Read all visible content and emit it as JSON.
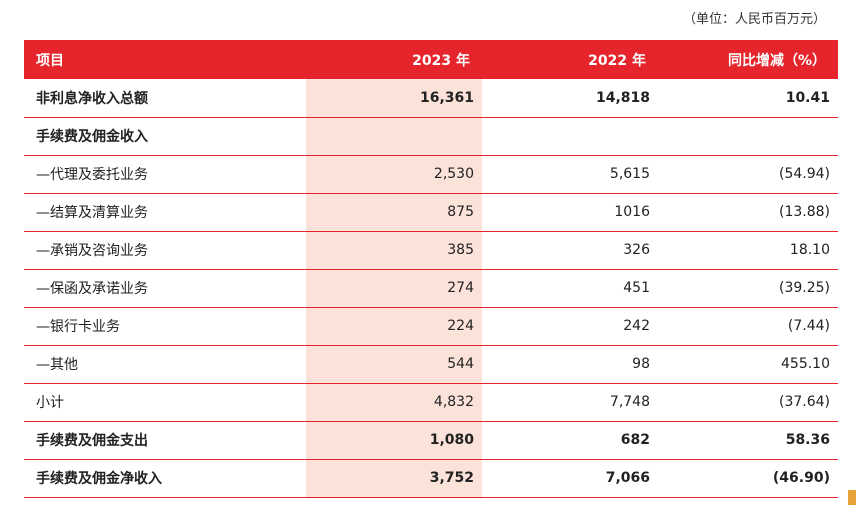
{
  "unit_note": "（单位：人民币百万元）",
  "header": {
    "item": "项目",
    "y2023": "2023 年",
    "y2022": "2022 年",
    "change": "同比增减（%）"
  },
  "rows": [
    {
      "label": "非利息净收入总额",
      "v2023": "16,361",
      "v2022": "14,818",
      "change": "10.41",
      "bold": true
    },
    {
      "label": "手续费及佣金收入",
      "v2023": "",
      "v2022": "",
      "change": "",
      "bold": true
    },
    {
      "label": "—代理及委托业务",
      "v2023": "2,530",
      "v2022": "5,615",
      "change": "(54.94)",
      "bold": false
    },
    {
      "label": "—结算及清算业务",
      "v2023": "875",
      "v2022": "1016",
      "change": "(13.88)",
      "bold": false
    },
    {
      "label": "—承销及咨询业务",
      "v2023": "385",
      "v2022": "326",
      "change": "18.10",
      "bold": false
    },
    {
      "label": "—保函及承诺业务",
      "v2023": "274",
      "v2022": "451",
      "change": "(39.25)",
      "bold": false
    },
    {
      "label": "—银行卡业务",
      "v2023": "224",
      "v2022": "242",
      "change": "(7.44)",
      "bold": false
    },
    {
      "label": "—其他",
      "v2023": "544",
      "v2022": "98",
      "change": "455.10",
      "bold": false
    },
    {
      "label": "小计",
      "v2023": "4,832",
      "v2022": "7,748",
      "change": "(37.64)",
      "bold": false
    },
    {
      "label": "手续费及佣金支出",
      "v2023": "1,080",
      "v2022": "682",
      "change": "58.36",
      "bold": true
    },
    {
      "label": "手续费及佣金净收入",
      "v2023": "3,752",
      "v2022": "7,066",
      "change": "(46.90)",
      "bold": true
    }
  ],
  "colors": {
    "accent": "#e5252b",
    "highlight": "#fbe3da"
  }
}
